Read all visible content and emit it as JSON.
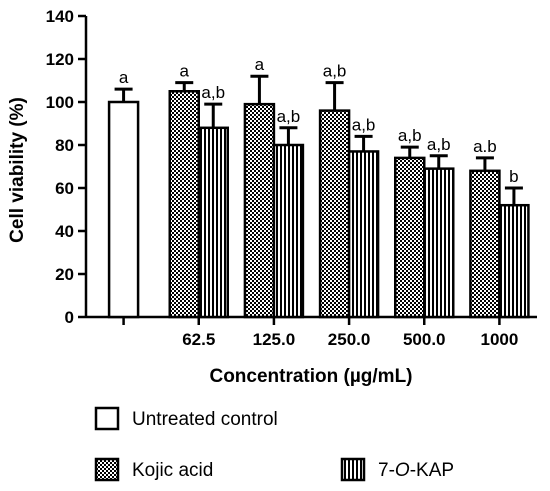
{
  "chart_data": {
    "type": "bar",
    "xlabel": "Concentration (µg/mL)",
    "ylabel": "Cell viability (%)",
    "ylim": [
      0,
      140
    ],
    "yticks": [
      "0",
      "20",
      "40",
      "60",
      "80",
      "100",
      "120",
      "140"
    ],
    "grid": false,
    "legend_position": "bottom",
    "categories": [
      "",
      "62.5",
      "125.0",
      "250.0",
      "500.0",
      "1000"
    ],
    "series": [
      {
        "name": "Untreated control",
        "pattern": "open",
        "color": "#ffffff",
        "points": [
          {
            "category": "",
            "value": 100,
            "error": 6,
            "label": "a"
          }
        ]
      },
      {
        "name": "Kojic acid",
        "pattern": "checkered",
        "color": "#000000",
        "points": [
          {
            "category": "62.5",
            "value": 105,
            "error": 4,
            "label": "a"
          },
          {
            "category": "125.0",
            "value": 99,
            "error": 13,
            "label": "a"
          },
          {
            "category": "250.0",
            "value": 96,
            "error": 13,
            "label": "a,b"
          },
          {
            "category": "500.0",
            "value": 74,
            "error": 5,
            "label": "a,b"
          },
          {
            "category": "1000",
            "value": 68,
            "error": 6,
            "label": "a.b"
          }
        ]
      },
      {
        "name": "7-O-KAP",
        "name_prefix": "7-",
        "name_italic": "O",
        "name_suffix": "-KAP",
        "pattern": "vertical-stripes",
        "color": "#000000",
        "points": [
          {
            "category": "62.5",
            "value": 88,
            "error": 11,
            "label": "a,b"
          },
          {
            "category": "125.0",
            "value": 80,
            "error": 8,
            "label": "a,b"
          },
          {
            "category": "250.0",
            "value": 77,
            "error": 7,
            "label": "a,b"
          },
          {
            "category": "500.0",
            "value": 69,
            "error": 6,
            "label": "a,b"
          },
          {
            "category": "1000",
            "value": 52,
            "error": 8,
            "label": "b"
          }
        ]
      }
    ]
  }
}
